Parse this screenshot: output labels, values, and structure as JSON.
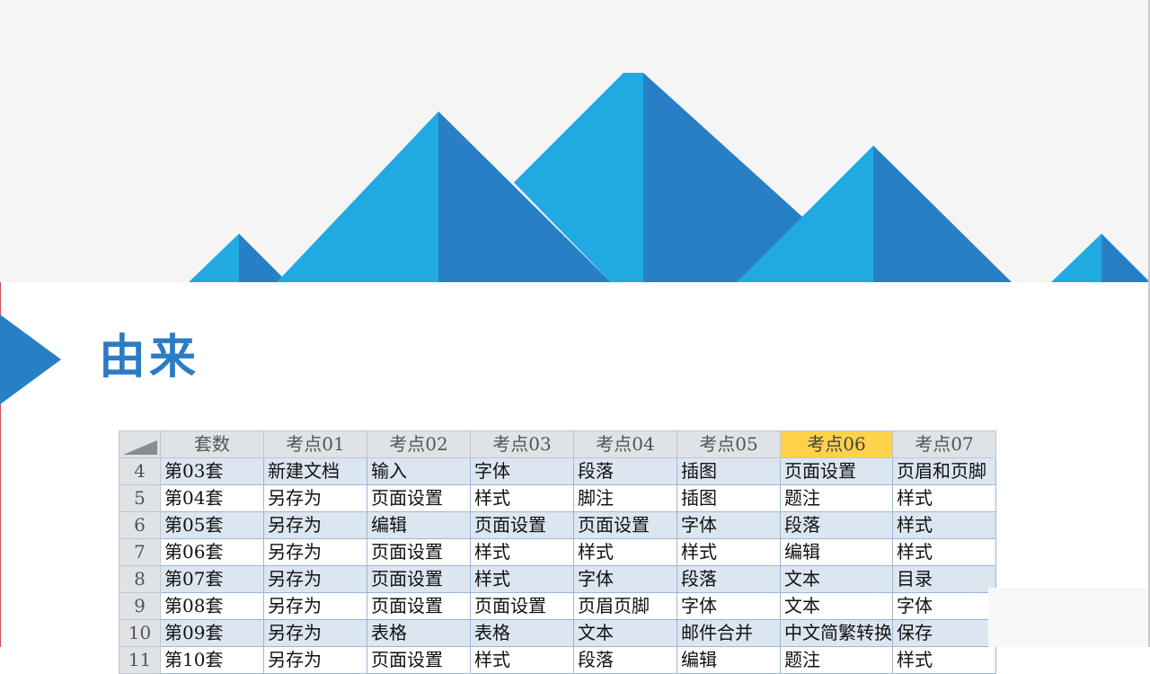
{
  "slide": {
    "title": "由来",
    "colors": {
      "accent": "#2a7cc4",
      "peak_light": "#21a9e1",
      "peak_dark": "#2780c5",
      "header_highlight": "#ffd24a"
    }
  },
  "sheet": {
    "columns": [
      "套数",
      "考点01",
      "考点02",
      "考点03",
      "考点04",
      "考点05",
      "考点06",
      "考点07"
    ],
    "highlighted_column": "考点06",
    "rows": [
      {
        "n": "4",
        "cells": [
          "第03套",
          "新建文档",
          "输入",
          "字体",
          "段落",
          "插图",
          "页面设置",
          "页眉和页脚"
        ]
      },
      {
        "n": "5",
        "cells": [
          "第04套",
          "另存为",
          "页面设置",
          "样式",
          "脚注",
          "插图",
          "题注",
          "样式"
        ]
      },
      {
        "n": "6",
        "cells": [
          "第05套",
          "另存为",
          "编辑",
          "页面设置",
          "页面设置",
          "字体",
          "段落",
          "样式"
        ]
      },
      {
        "n": "7",
        "cells": [
          "第06套",
          "另存为",
          "页面设置",
          "样式",
          "样式",
          "样式",
          "编辑",
          "样式"
        ]
      },
      {
        "n": "8",
        "cells": [
          "第07套",
          "另存为",
          "页面设置",
          "样式",
          "字体",
          "段落",
          "文本",
          "目录"
        ]
      },
      {
        "n": "9",
        "cells": [
          "第08套",
          "另存为",
          "页面设置",
          "页面设置",
          "页眉页脚",
          "字体",
          "文本",
          "字体"
        ]
      },
      {
        "n": "10",
        "cells": [
          "第09套",
          "另存为",
          "表格",
          "表格",
          "文本",
          "邮件合并",
          "中文简繁转换",
          "保存"
        ]
      },
      {
        "n": "11",
        "cells": [
          "第10套",
          "另存为",
          "页面设置",
          "样式",
          "段落",
          "编辑",
          "题注",
          "样式"
        ]
      }
    ]
  }
}
